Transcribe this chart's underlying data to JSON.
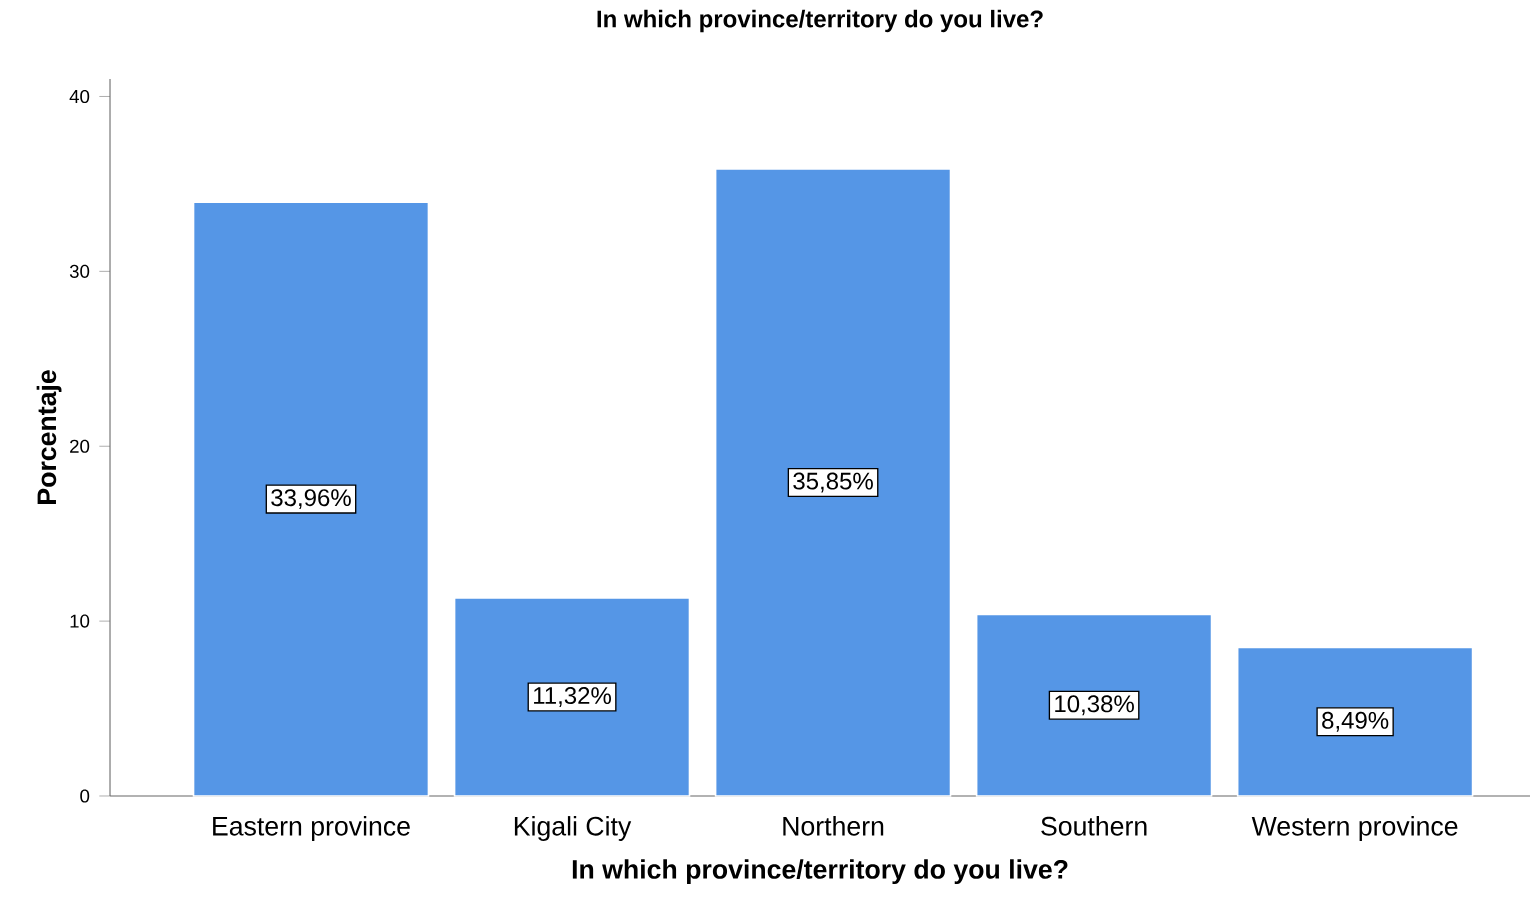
{
  "chart_data": {
    "type": "bar",
    "title": "In which province/territory do you live?",
    "xlabel": "In which province/territory do you live?",
    "ylabel": "Porcentaje",
    "categories": [
      "Eastern province",
      "Kigali City",
      "Northern",
      "Southern",
      "Western province"
    ],
    "values": [
      33.96,
      11.32,
      35.85,
      10.38,
      8.49
    ],
    "value_labels": [
      "33,96%",
      "11,32%",
      "35,85%",
      "10,38%",
      "8,49%"
    ],
    "color": "#5596e6",
    "ylim": [
      0,
      41
    ],
    "yticks": [
      0,
      10,
      20,
      30,
      40
    ]
  }
}
